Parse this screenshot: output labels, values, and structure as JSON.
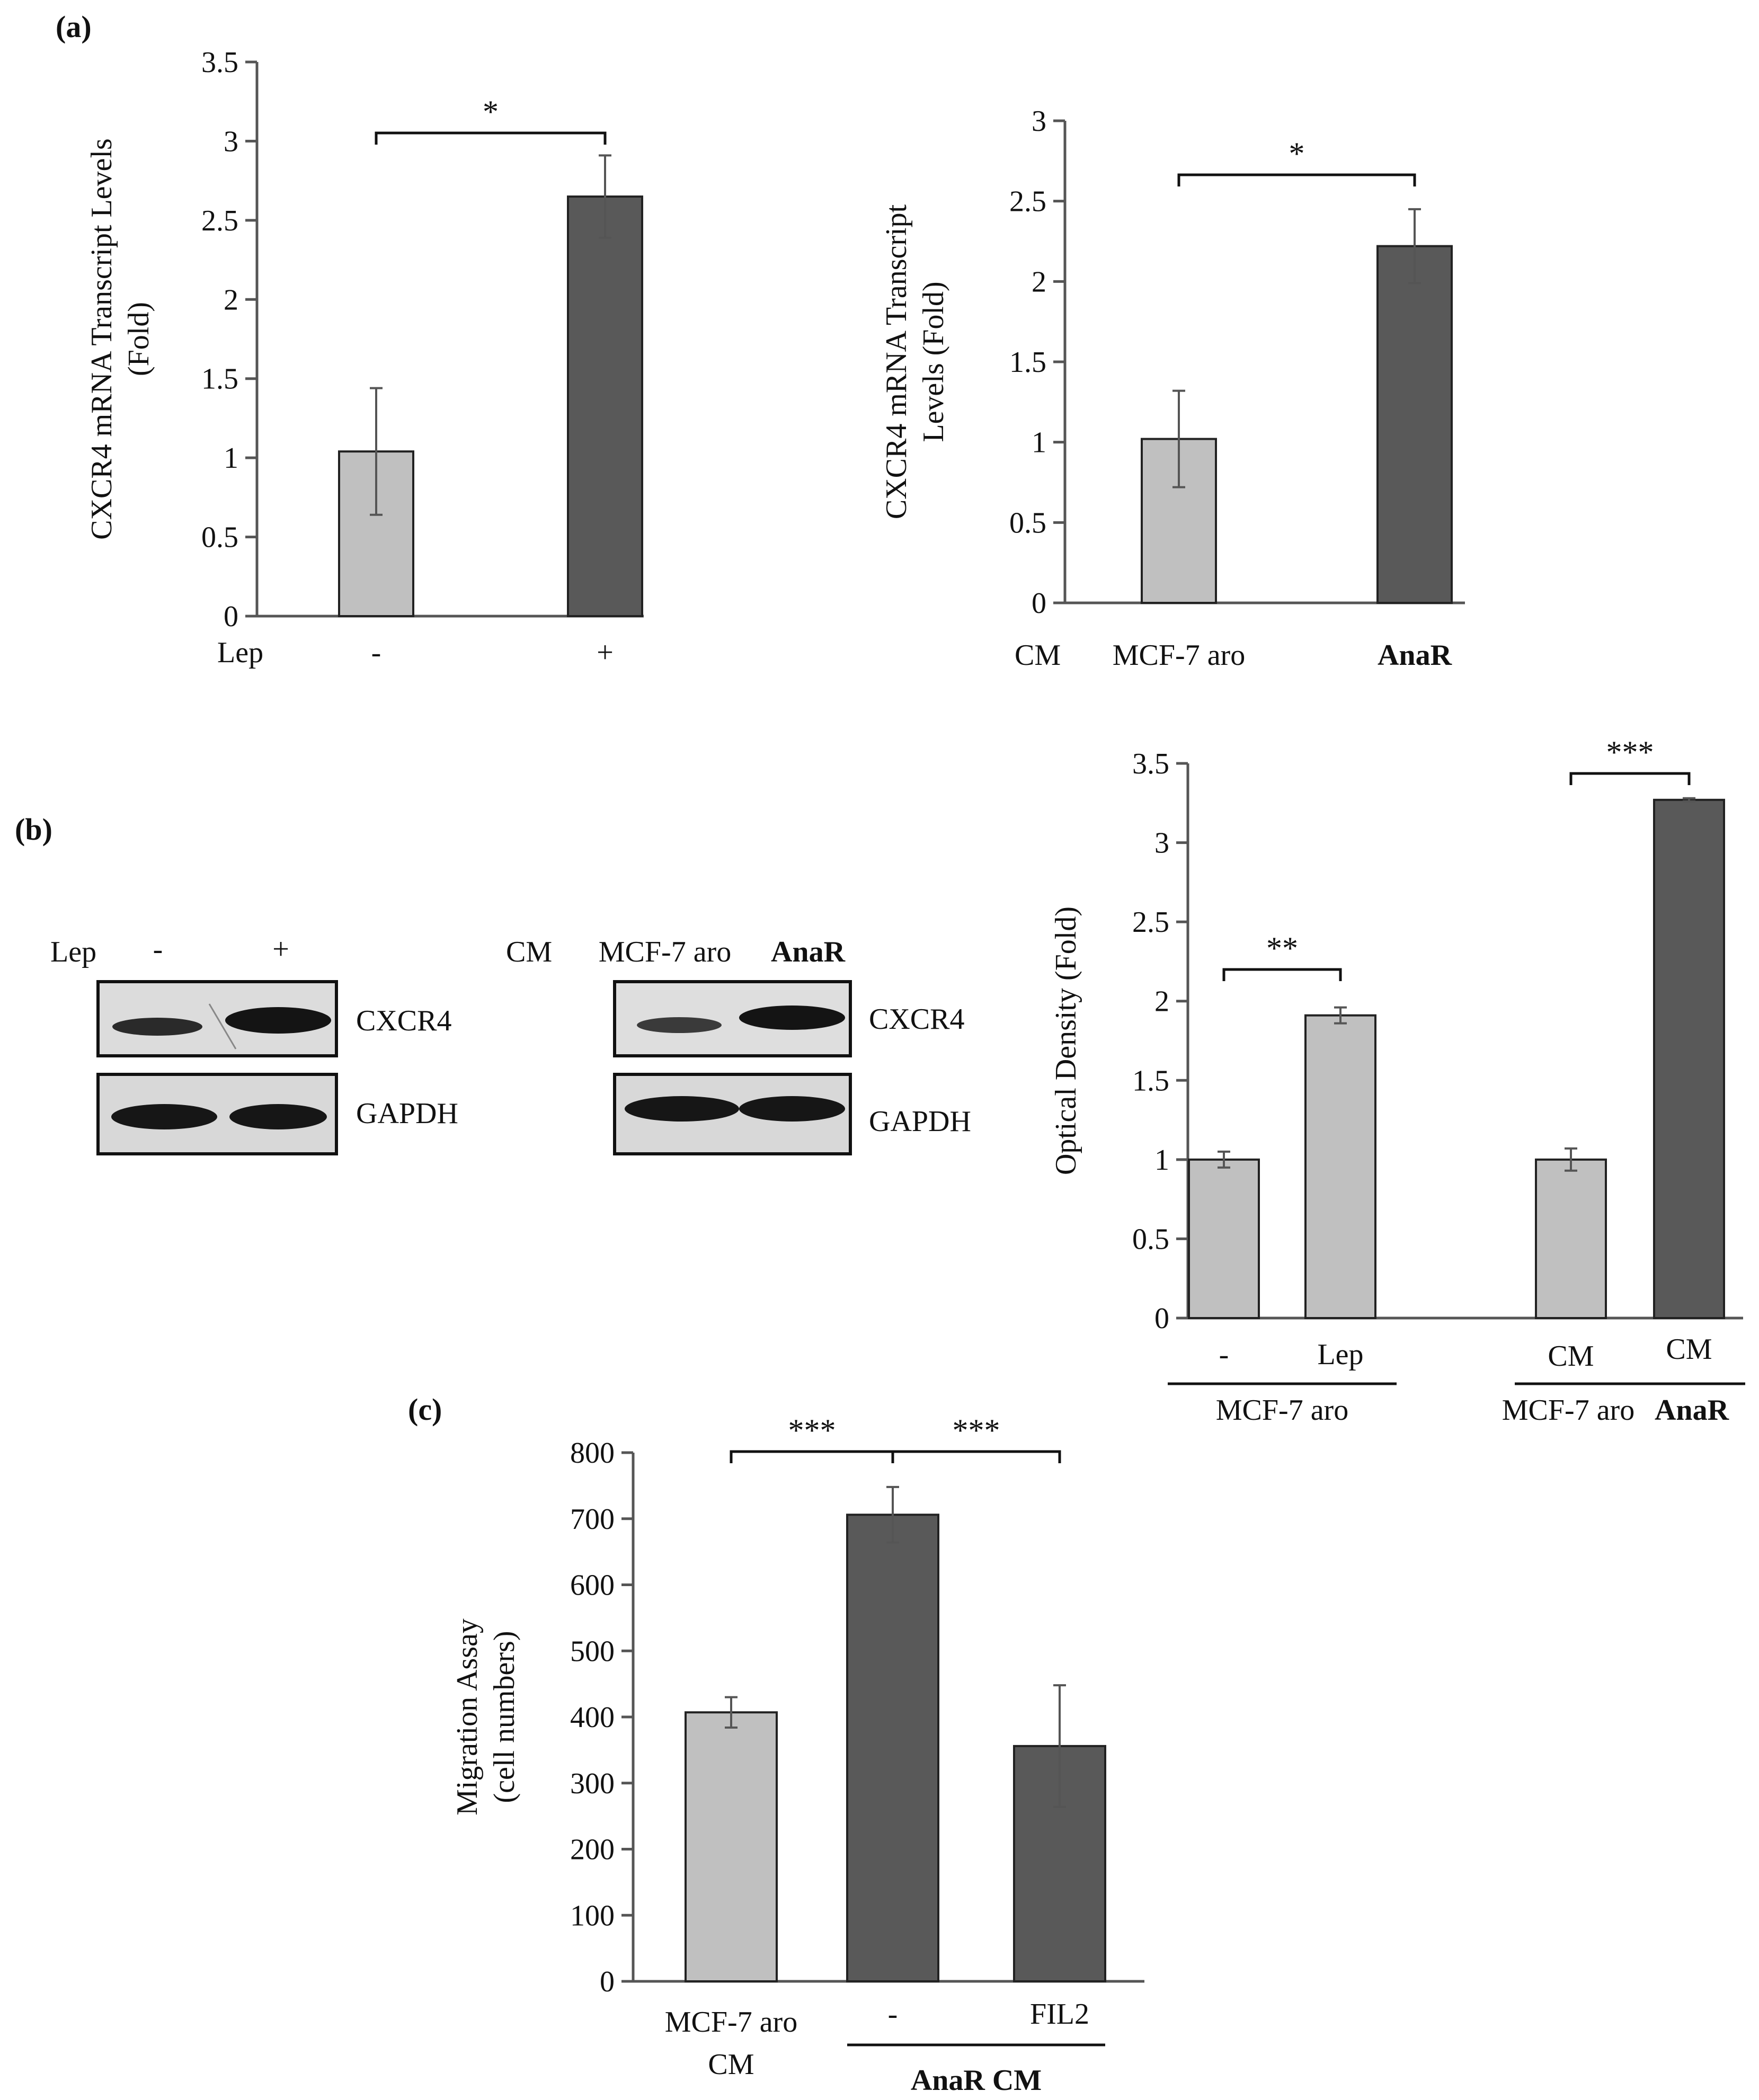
{
  "colors": {
    "light": "#c0c0c0",
    "dark": "#595959",
    "axis": "#555555",
    "err": "#555555",
    "blot_bg": "#d9d9d9",
    "band": "#1a1a1a"
  },
  "panel_labels": {
    "a": "(a)",
    "b": "(b)",
    "c": "(c)"
  },
  "chart_data": [
    {
      "id": "a_left",
      "type": "bar",
      "ylabel": [
        "CXCR4 mRNA Transcript Levels",
        "(Fold)"
      ],
      "ylim": [
        0,
        3.5
      ],
      "ticks": [
        "0",
        "0.5",
        "1",
        "1.5",
        "2",
        "2.5",
        "3",
        "3.5"
      ],
      "row_label": "Lep",
      "categories": [
        "-",
        "+"
      ],
      "values": [
        1.04,
        2.65
      ],
      "errors": [
        0.4,
        0.26
      ],
      "colors": [
        "light",
        "dark"
      ],
      "significance": [
        {
          "from": 0,
          "to": 1,
          "label": "*"
        }
      ]
    },
    {
      "id": "a_right",
      "type": "bar",
      "ylabel": [
        "CXCR4 mRNA Transcript",
        "Levels (Fold)"
      ],
      "ylim": [
        0,
        3
      ],
      "ticks": [
        "0",
        "0.5",
        "1",
        "1.5",
        "2",
        "2.5",
        "3"
      ],
      "row_label": "CM",
      "categories": [
        "MCF-7 aro",
        "AnaR"
      ],
      "bold_categories": [
        1
      ],
      "values": [
        1.02,
        2.22
      ],
      "errors": [
        0.3,
        0.23
      ],
      "colors": [
        "light",
        "dark"
      ],
      "significance": [
        {
          "from": 0,
          "to": 1,
          "label": "*"
        }
      ]
    },
    {
      "id": "b_bar",
      "type": "bar",
      "ylabel": [
        "Optical Density (Fold)"
      ],
      "ylim": [
        0,
        3.5
      ],
      "ticks": [
        "0",
        "0.5",
        "1",
        "1.5",
        "2",
        "2.5",
        "3",
        "3.5"
      ],
      "categories": [
        "-",
        "Lep",
        "CM",
        "CM"
      ],
      "values": [
        1.0,
        1.91,
        1.0,
        3.27
      ],
      "errors": [
        0.05,
        0.05,
        0.07,
        0.01
      ],
      "colors": [
        "light",
        "light",
        "light",
        "dark"
      ],
      "significance": [
        {
          "from": 0,
          "to": 1,
          "label": "**"
        },
        {
          "from": 2,
          "to": 3,
          "label": "***"
        }
      ],
      "groups": [
        {
          "from": 0,
          "to": 1,
          "label": "MCF-7 aro"
        },
        {
          "from": 2,
          "to": 3,
          "label": "MCF-7 aro",
          "label2": "AnaR"
        }
      ]
    },
    {
      "id": "c_bar",
      "type": "bar",
      "ylabel": [
        "Migration Assay",
        "(cell numbers)"
      ],
      "ylim": [
        0,
        800
      ],
      "ticks": [
        "0",
        "100",
        "200",
        "300",
        "400",
        "500",
        "600",
        "700",
        "800"
      ],
      "categories": [
        "MCF-7 aro\nCM",
        "-",
        "FIL2"
      ],
      "values": [
        407,
        706,
        356
      ],
      "errors": [
        23,
        42,
        92
      ],
      "colors": [
        "light",
        "dark",
        "dark"
      ],
      "significance": [
        {
          "from": 0,
          "to": 1,
          "label": "***"
        },
        {
          "from": 1,
          "to": 2,
          "label": "***"
        }
      ],
      "groups": [
        {
          "from": 1,
          "to": 2,
          "label": "AnaR CM"
        }
      ]
    }
  ],
  "blots": {
    "left": {
      "row_label": "Lep",
      "lanes": [
        "-",
        "+"
      ],
      "bands": [
        "CXCR4",
        "GAPDH"
      ]
    },
    "right": {
      "row_label": "CM",
      "lanes": [
        "MCF-7 aro",
        "AnaR"
      ],
      "bands": [
        "CXCR4",
        "GAPDH"
      ]
    }
  }
}
